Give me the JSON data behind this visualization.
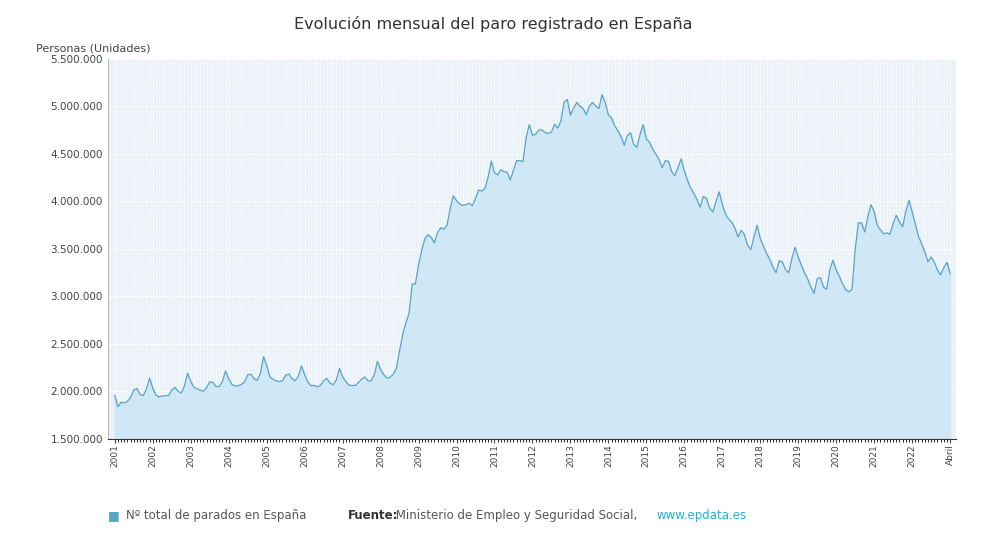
{
  "title": "Evolución mensual del paro registrado en España",
  "ylabel": "Personas (Unidades)",
  "line_color": "#5ba3c9",
  "fill_color": "#d0e8f5",
  "background_color": "#ffffff",
  "plot_bg_color": "#eaf2f8",
  "grid_color": "#ffffff",
  "grid_style": "--",
  "ylim": [
    1500000,
    5500000
  ],
  "yticks": [
    1500000,
    2000000,
    2500000,
    3000000,
    3500000,
    4000000,
    4500000,
    5000000,
    5500000
  ],
  "legend_label": "Nº total de parados en España",
  "legend_square_color": "#5ba3c9",
  "source_bold": "Fuente:",
  "source_normal": " Ministerio de Empleo y Seguridad Social, ",
  "source_url": "www.epdata.es",
  "source_url_color": "#1ab3d4",
  "values": [
    1953400,
    1836300,
    1884500,
    1876200,
    1892600,
    1936400,
    2011900,
    2028500,
    1964000,
    1955700,
    2021900,
    2138600,
    2033100,
    1958000,
    1940200,
    1950700,
    1952100,
    1955600,
    2010900,
    2040200,
    1998300,
    1982200,
    2054300,
    2188700,
    2104900,
    2041700,
    2024200,
    2011700,
    1999500,
    2038300,
    2098200,
    2092500,
    2049900,
    2048700,
    2100100,
    2213700,
    2129900,
    2072300,
    2053000,
    2059000,
    2071600,
    2097200,
    2172600,
    2178400,
    2130900,
    2113100,
    2187900,
    2363400,
    2273400,
    2152400,
    2126600,
    2109000,
    2101400,
    2108900,
    2168700,
    2181000,
    2133400,
    2109300,
    2155800,
    2266200,
    2174400,
    2097200,
    2058600,
    2060300,
    2046100,
    2063200,
    2110400,
    2135600,
    2085800,
    2067200,
    2118600,
    2239200,
    2153900,
    2101500,
    2064200,
    2059800,
    2060800,
    2090700,
    2126100,
    2149300,
    2110900,
    2107200,
    2172800,
    2313700,
    2229000,
    2174100,
    2137500,
    2146200,
    2179700,
    2240300,
    2425700,
    2597100,
    2720600,
    2818500,
    3128900,
    3129700,
    3327800,
    3481200,
    3605500,
    3647900,
    3620800,
    3561500,
    3668900,
    3720500,
    3706400,
    3748900,
    3923700,
    4057500,
    4007700,
    3972700,
    3956900,
    3964600,
    3979600,
    3954400,
    4032200,
    4118600,
    4107300,
    4135100,
    4257200,
    4422400,
    4299100,
    4278900,
    4333600,
    4311000,
    4306800,
    4224600,
    4327400,
    4427900,
    4428100,
    4418600,
    4668800,
    4806800,
    4695800,
    4706100,
    4751400,
    4750300,
    4723900,
    4714900,
    4728200,
    4811700,
    4770400,
    4845600,
    5044700,
    5073100,
    4906500,
    4980600,
    5040700,
    5001600,
    4978900,
    4910200,
    5002700,
    5040800,
    5004600,
    4975700,
    5122900,
    5040100,
    4908700,
    4877600,
    4793200,
    4743800,
    4684500,
    4590200,
    4691800,
    4722200,
    4599100,
    4567800,
    4703100,
    4807700,
    4656800,
    4622100,
    4549600,
    4496400,
    4440200,
    4352800,
    4427200,
    4419800,
    4312000,
    4268300,
    4354300,
    4447100,
    4320300,
    4223900,
    4137400,
    4084700,
    4019300,
    3938100,
    4050400,
    4028300,
    3929600,
    3886800,
    3997900,
    4100100,
    3968500,
    3864600,
    3814000,
    3779300,
    3715500,
    3624000,
    3695700,
    3647800,
    3537600,
    3491900,
    3623000,
    3748600,
    3607800,
    3528000,
    3450500,
    3388800,
    3307400,
    3249300,
    3373600,
    3360900,
    3278300,
    3248300,
    3397900,
    3516800,
    3411700,
    3326600,
    3246900,
    3180000,
    3095900,
    3030600,
    3183100,
    3198000,
    3095800,
    3073800,
    3283200,
    3380200,
    3276800,
    3209700,
    3131900,
    3068700,
    3047900,
    3072600,
    3490000,
    3772700,
    3772200,
    3676900,
    3834800,
    3964300,
    3888800,
    3747600,
    3698500,
    3656900,
    3668200,
    3652700,
    3767800,
    3852600,
    3782100,
    3730700,
    3892100,
    4010700,
    3888500,
    3759000,
    3631100,
    3552800,
    3467400,
    3362600,
    3414000,
    3359500,
    3276300,
    3224200,
    3301600,
    3356600,
    3238700
  ]
}
